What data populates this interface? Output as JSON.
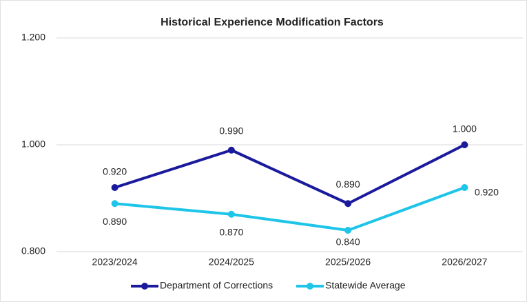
{
  "chart_data": {
    "type": "line",
    "title": "Historical Experience Modification Factors",
    "categories": [
      "2023/2024",
      "2024/2025",
      "2025/2026",
      "2026/2027"
    ],
    "series": [
      {
        "name": "Department of Corrections",
        "color": "#1a1a9c",
        "values": [
          0.92,
          0.99,
          0.89,
          1.0
        ],
        "value_labels": [
          "0.920",
          "0.990",
          "0.890",
          "1.000"
        ]
      },
      {
        "name": "Statewide Average",
        "color": "#1ec5e8",
        "values": [
          0.89,
          0.87,
          0.84,
          0.92
        ],
        "value_labels": [
          "0.890",
          "0.870",
          "0.840",
          "0.920"
        ]
      }
    ],
    "ylim": [
      0.8,
      1.2
    ],
    "yticks": [
      {
        "value": 0.8,
        "label": "0.800"
      },
      {
        "value": 1.0,
        "label": "1.000"
      },
      {
        "value": 1.2,
        "label": "1.200"
      }
    ],
    "grid": true,
    "legend": "bottom"
  }
}
